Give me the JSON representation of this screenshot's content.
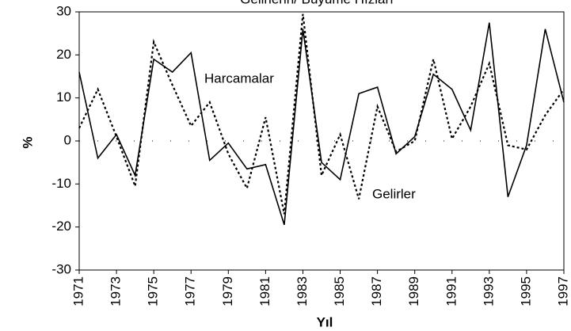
{
  "chart_data": {
    "type": "line",
    "title": "Gelirlerin/ Büyüme Hızları",
    "x_label": "Yıl",
    "y_label": "%",
    "x": [
      1971,
      1972,
      1973,
      1974,
      1975,
      1976,
      1977,
      1978,
      1979,
      1980,
      1981,
      1982,
      1983,
      1984,
      1985,
      1986,
      1987,
      1988,
      1989,
      1990,
      1991,
      1992,
      1993,
      1994,
      1995,
      1996,
      1997
    ],
    "series": [
      {
        "name": "Harcamalar",
        "color": "#000000",
        "dash": "solid",
        "values": [
          16,
          -4,
          1.5,
          -8,
          19,
          16,
          20.5,
          -4.5,
          -0.5,
          -6.5,
          -5.5,
          -19.5,
          26,
          -5,
          -9,
          11,
          12.5,
          -3,
          1,
          15.5,
          12,
          2.5,
          27.5,
          -13,
          -1,
          26,
          9
        ]
      },
      {
        "name": "Gelirler",
        "color": "#000000",
        "dash": "dotted",
        "values": [
          3,
          12,
          1,
          -10.5,
          23,
          13,
          3.5,
          9,
          -3,
          -11,
          5.5,
          -17,
          29.5,
          -8,
          1.5,
          -13.5,
          8,
          -2.5,
          0,
          19,
          0.5,
          8,
          18,
          -1,
          -2,
          6,
          12
        ]
      }
    ],
    "xlim": [
      1971,
      1997
    ],
    "xticks": [
      1971,
      1973,
      1975,
      1977,
      1979,
      1981,
      1983,
      1985,
      1987,
      1989,
      1991,
      1993,
      1995,
      1997
    ],
    "ylim": [
      -30,
      30
    ],
    "yticks": [
      -30,
      -20,
      -10,
      0,
      10,
      20,
      30
    ],
    "grid": false
  }
}
